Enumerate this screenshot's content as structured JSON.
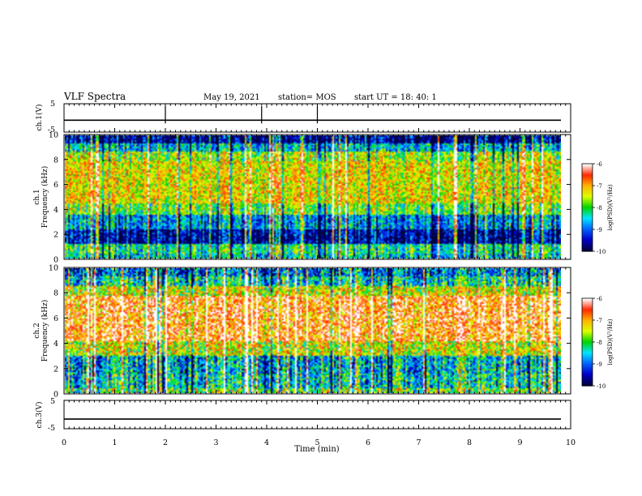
{
  "header": {
    "title": "VLF Spectra",
    "date": "May 19, 2021",
    "station": "station= MOS",
    "start": "start  UT  =   18: 40: 1"
  },
  "chart_data": [
    {
      "type": "line",
      "panel": "ch1-waveform",
      "ylabel": "ch.1(V)",
      "ylim": [
        -5,
        5
      ],
      "y_ticks": [
        "5",
        "-5"
      ],
      "x": [
        0,
        10
      ],
      "y": [
        -0.8,
        -0.8
      ],
      "spikes_at_min": [
        2.0,
        3.9,
        5.0
      ]
    },
    {
      "type": "heatmap",
      "panel": "ch1-spectrogram",
      "ylabel": "ch.1\nFrequency  (kHz)",
      "ylim": [
        0,
        10
      ],
      "y_ticks": [
        "0",
        "2",
        "4",
        "6",
        "8",
        "10"
      ],
      "xlim": [
        0,
        9.85
      ],
      "bands": [
        {
          "f0": 0.0,
          "f1": 0.3,
          "level": -8.5
        },
        {
          "f0": 0.3,
          "f1": 1.2,
          "level": -8.2
        },
        {
          "f0": 1.2,
          "f1": 2.4,
          "level": -9.6
        },
        {
          "f0": 2.4,
          "f1": 3.5,
          "level": -8.8
        },
        {
          "f0": 3.5,
          "f1": 4.5,
          "level": -7.8
        },
        {
          "f0": 4.5,
          "f1": 8.0,
          "level": -7.3
        },
        {
          "f0": 8.0,
          "f1": 8.8,
          "level": -7.6
        },
        {
          "f0": 8.8,
          "f1": 9.4,
          "level": -8.6
        },
        {
          "f0": 9.4,
          "f1": 10.0,
          "level": -9.7
        }
      ],
      "colorbar": {
        "label": "log(PSD)(V²/Hz)",
        "ticks": [
          "-6",
          "-7",
          "-8",
          "-9",
          "-10"
        ]
      }
    },
    {
      "type": "heatmap",
      "panel": "ch2-spectrogram",
      "ylabel": "ch.2\nFrequency  (kHz)",
      "ylim": [
        0,
        10
      ],
      "y_ticks": [
        "0",
        "2",
        "4",
        "6",
        "8",
        "10"
      ],
      "xlim": [
        0,
        9.85
      ],
      "bands": [
        {
          "f0": 0.0,
          "f1": 0.3,
          "level": -7.8
        },
        {
          "f0": 0.3,
          "f1": 1.5,
          "level": -8.4
        },
        {
          "f0": 1.5,
          "f1": 3.0,
          "level": -8.6
        },
        {
          "f0": 3.0,
          "f1": 4.2,
          "level": -7.4
        },
        {
          "f0": 4.2,
          "f1": 7.8,
          "level": -6.6
        },
        {
          "f0": 7.8,
          "f1": 8.6,
          "level": -7.4
        },
        {
          "f0": 8.6,
          "f1": 9.4,
          "level": -8.3
        },
        {
          "f0": 9.4,
          "f1": 10.0,
          "level": -8.9
        }
      ],
      "colorbar": {
        "label": "log(PSD)(V²/Hz)",
        "ticks": [
          "-6",
          "-7",
          "-8",
          "-9",
          "-10"
        ]
      }
    },
    {
      "type": "line",
      "panel": "ch3-waveform",
      "ylabel": "ch.3(V)",
      "ylim": [
        -5,
        5
      ],
      "y_ticks": [
        "5",
        "-5"
      ],
      "x": [
        0,
        10
      ],
      "y": [
        -1.6,
        -1.6
      ],
      "spikes_at_min": []
    }
  ],
  "x_axis": {
    "label": "Time  (min)",
    "range": [
      0,
      10
    ],
    "ticks": [
      "0",
      "1",
      "2",
      "3",
      "4",
      "5",
      "6",
      "7",
      "8",
      "9",
      "10"
    ]
  },
  "colormap": [
    "#000040",
    "#0000c8",
    "#0064ff",
    "#00e6ff",
    "#00d200",
    "#dcff00",
    "#ffb400",
    "#ff2800",
    "#ffffff"
  ]
}
